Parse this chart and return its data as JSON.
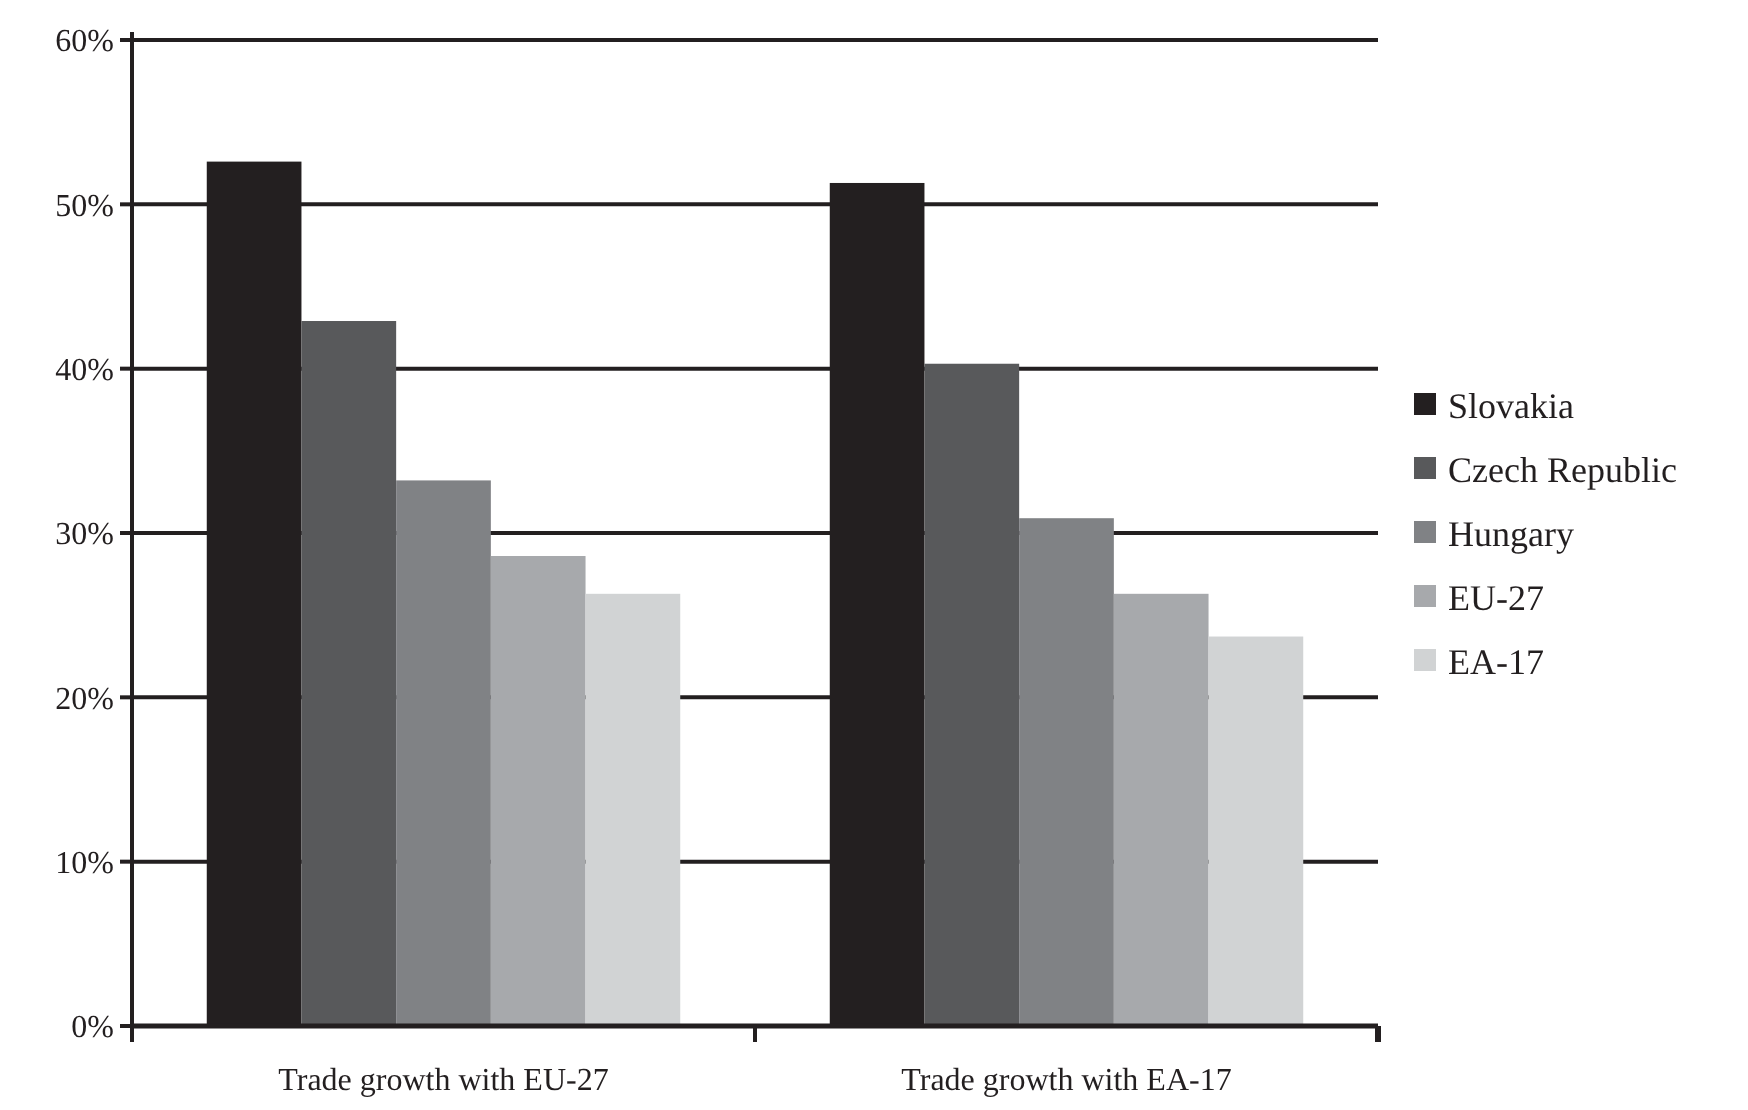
{
  "chart_data": {
    "type": "bar",
    "categories": [
      "Trade growth with EU-27",
      "Trade growth with EA-17"
    ],
    "series": [
      {
        "name": "Slovakia",
        "color": "#231f20",
        "values": [
          52.6,
          51.3
        ]
      },
      {
        "name": "Czech Republic",
        "color": "#58595b",
        "values": [
          42.9,
          40.3
        ]
      },
      {
        "name": "Hungary",
        "color": "#808285",
        "values": [
          33.2,
          30.9
        ]
      },
      {
        "name": "EU-27",
        "color": "#a7a9ac",
        "values": [
          28.6,
          26.3
        ]
      },
      {
        "name": "EA-17",
        "color": "#d1d3d4",
        "values": [
          26.3,
          23.7
        ]
      }
    ],
    "ylim": [
      0,
      60
    ],
    "yticks": [
      {
        "value": 0,
        "label": "0%"
      },
      {
        "value": 10,
        "label": "10%"
      },
      {
        "value": 20,
        "label": "20%"
      },
      {
        "value": 30,
        "label": "30%"
      },
      {
        "value": 40,
        "label": "40%"
      },
      {
        "value": 50,
        "label": "50%"
      },
      {
        "value": 60,
        "label": "60%"
      }
    ],
    "grid": "y",
    "legend": "right"
  }
}
